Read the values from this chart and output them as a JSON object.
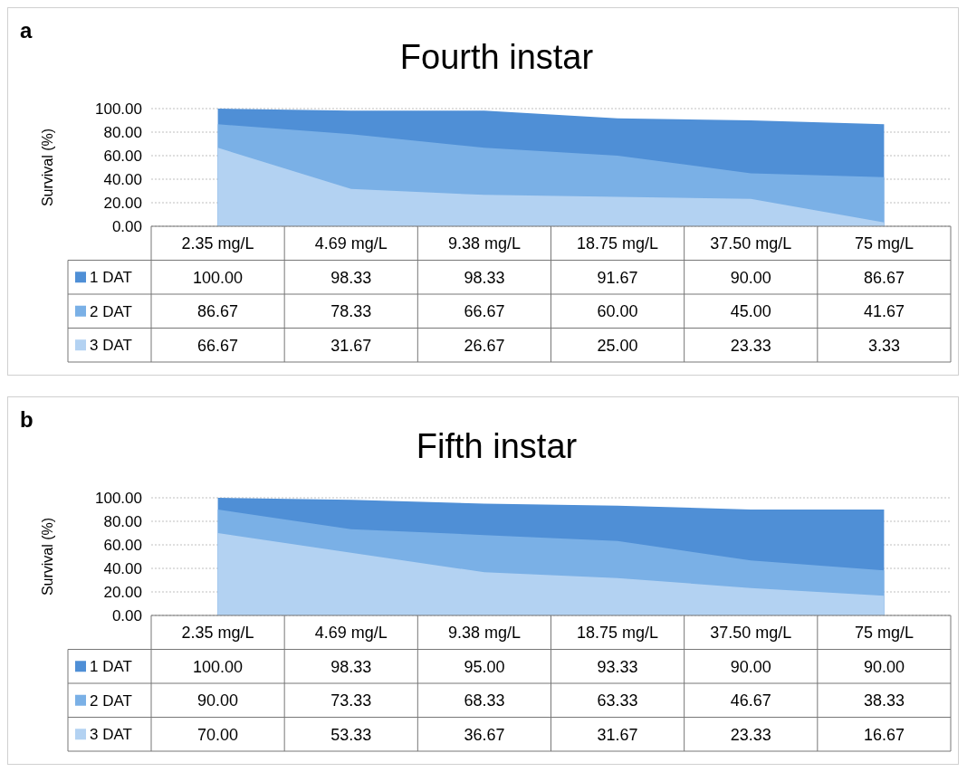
{
  "chart_data": [
    {
      "type": "area",
      "title": "Fourth instar",
      "ylabel": "Survival (%)",
      "annotations": [
        "a"
      ],
      "categories": [
        "2.35 mg/L",
        "4.69 mg/L",
        "9.38 mg/L",
        "18.75 mg/L",
        "37.50 mg/L",
        "75 mg/L"
      ],
      "series": [
        {
          "name": "1 DAT",
          "color": "#4f8fd6",
          "values": [
            100.0,
            98.33,
            98.33,
            91.67,
            90.0,
            86.67
          ],
          "value_labels": [
            "100.00",
            "98.33",
            "98.33",
            "91.67",
            "90.00",
            "86.67"
          ]
        },
        {
          "name": "2 DAT",
          "color": "#7ab0e6",
          "values": [
            86.67,
            78.33,
            66.67,
            60.0,
            45.0,
            41.67
          ],
          "value_labels": [
            "86.67",
            "78.33",
            "66.67",
            "60.00",
            "45.00",
            "41.67"
          ]
        },
        {
          "name": "3 DAT",
          "color": "#b3d2f2",
          "values": [
            66.67,
            31.67,
            26.67,
            25.0,
            23.33,
            3.33
          ],
          "value_labels": [
            "66.67",
            "31.67",
            "26.67",
            "25.00",
            "23.33",
            "3.33"
          ]
        }
      ],
      "ylim": [
        0,
        100
      ],
      "yticks": [
        {
          "value": 0,
          "label": "0.00"
        },
        {
          "value": 20,
          "label": "20.00"
        },
        {
          "value": 40,
          "label": "40.00"
        },
        {
          "value": 60,
          "label": "60.00"
        },
        {
          "value": 80,
          "label": "80.00"
        },
        {
          "value": 100,
          "label": "100.00"
        }
      ],
      "grid": "y",
      "legend": "bottom"
    },
    {
      "type": "area",
      "title": "Fifth instar",
      "ylabel": "Survival (%)",
      "annotations": [
        "b"
      ],
      "categories": [
        "2.35 mg/L",
        "4.69 mg/L",
        "9.38 mg/L",
        "18.75 mg/L",
        "37.50 mg/L",
        "75 mg/L"
      ],
      "series": [
        {
          "name": "1 DAT",
          "color": "#4f8fd6",
          "values": [
            100.0,
            98.33,
            95.0,
            93.33,
            90.0,
            90.0
          ],
          "value_labels": [
            "100.00",
            "98.33",
            "95.00",
            "93.33",
            "90.00",
            "90.00"
          ]
        },
        {
          "name": "2 DAT",
          "color": "#7ab0e6",
          "values": [
            90.0,
            73.33,
            68.33,
            63.33,
            46.67,
            38.33
          ],
          "value_labels": [
            "90.00",
            "73.33",
            "68.33",
            "63.33",
            "46.67",
            "38.33"
          ]
        },
        {
          "name": "3 DAT",
          "color": "#b3d2f2",
          "values": [
            70.0,
            53.33,
            36.67,
            31.67,
            23.33,
            16.67
          ],
          "value_labels": [
            "70.00",
            "53.33",
            "36.67",
            "31.67",
            "23.33",
            "16.67"
          ]
        }
      ],
      "ylim": [
        0,
        100
      ],
      "yticks": [
        {
          "value": 0,
          "label": "0.00"
        },
        {
          "value": 20,
          "label": "20.00"
        },
        {
          "value": 40,
          "label": "40.00"
        },
        {
          "value": 60,
          "label": "60.00"
        },
        {
          "value": 80,
          "label": "80.00"
        },
        {
          "value": 100,
          "label": "100.00"
        }
      ],
      "grid": "y",
      "legend": "bottom"
    }
  ]
}
